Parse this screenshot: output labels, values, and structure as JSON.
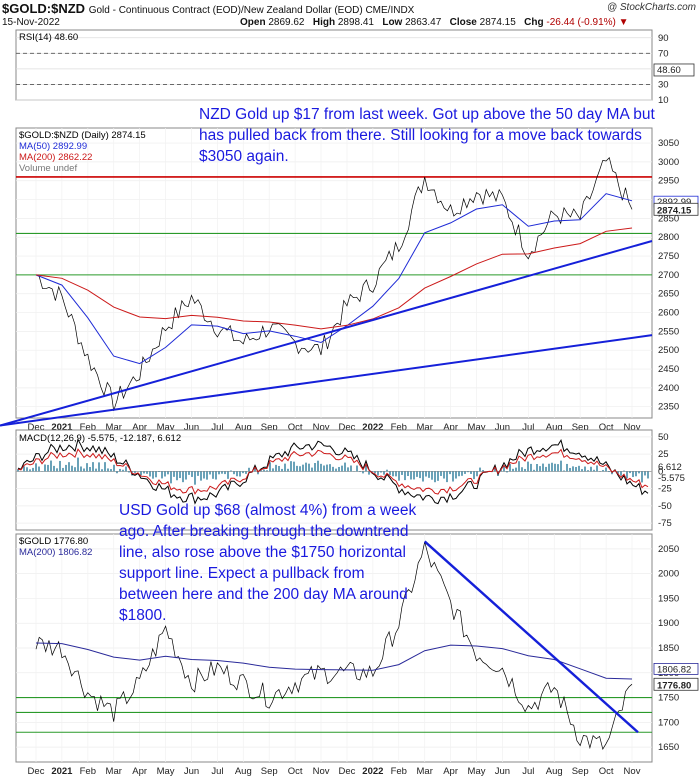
{
  "header": {
    "symbol": "$GOLD:$NZD",
    "description": "Gold - Continuous Contract (EOD)/New Zealand Dollar (EOD) CME/INDX",
    "date": "15-Nov-2022",
    "open_label": "Open",
    "open": "2869.62",
    "high_label": "High",
    "high": "2898.41",
    "low_label": "Low",
    "low": "2863.47",
    "close_label": "Close",
    "close": "2874.15",
    "chg_label": "Chg",
    "chg": "-26.44 (-0.91%)",
    "brand": "@ StockCharts.com"
  },
  "annotations": {
    "nzd_note": "NZD Gold up $17 from last week. Got up above the 50 day MA but has pulled back from there. Still looking for a move back towards $3050 again.",
    "usd_note": "USD Gold up $68 (almost 4%) from a week ago. After breaking through the downtrend line, also rose above the $1750 horizontal support line. Expect a pullback from between here and the 200 day MA around $1800."
  },
  "colors": {
    "price": "#000000",
    "ma50": "#1f2bd6",
    "ma200": "#cc1a1a",
    "trendline": "#1520d9",
    "resistance": "#cc0000",
    "support": "#2a9a2a",
    "annotation": "#1a1adf",
    "macd_hist": "#2a7a9a"
  },
  "chart_data": [
    {
      "type": "line",
      "panel": "RSI",
      "label": "RSI(14) 48.60",
      "value": 48.6,
      "y_ticks": [
        10,
        30,
        50,
        70,
        90
      ],
      "ylim": [
        10,
        100
      ],
      "reference_lines": [
        30,
        70
      ]
    },
    {
      "type": "line",
      "panel": "price",
      "title": "$GOLD:$NZD (Daily) 2874.15",
      "legend": [
        "MA(50) 2892.99",
        "MA(200) 2862.22",
        "Volume undef"
      ],
      "x_ticks": [
        "Dec",
        "2021",
        "Feb",
        "Mar",
        "Apr",
        "May",
        "Jun",
        "Jul",
        "Aug",
        "Sep",
        "Oct",
        "Nov",
        "Dec",
        "2022",
        "Feb",
        "Mar",
        "Apr",
        "May",
        "Jun",
        "Jul",
        "Aug",
        "Sep",
        "Oct",
        "Nov"
      ],
      "y_ticks": [
        2350,
        2400,
        2450,
        2500,
        2550,
        2600,
        2650,
        2700,
        2750,
        2800,
        2850,
        2900,
        2950,
        3000,
        3050
      ],
      "ylim": [
        2320,
        3090
      ],
      "price_label": "2874.15",
      "ma50_label": "2892.99",
      "ma200_label": "2862.22",
      "horizontal_lines": [
        {
          "value": 2960,
          "color": "red"
        },
        {
          "value": 2810,
          "color": "green"
        },
        {
          "value": 2700,
          "color": "green"
        }
      ],
      "close_approx": [
        {
          "x": "Dec 2020",
          "y": 2700
        },
        {
          "x": "Jan 2021",
          "y": 2640
        },
        {
          "x": "Feb 2021",
          "y": 2480
        },
        {
          "x": "Mar 2021",
          "y": 2360
        },
        {
          "x": "Apr 2021",
          "y": 2440
        },
        {
          "x": "May 2021",
          "y": 2560
        },
        {
          "x": "Jun 2021",
          "y": 2640
        },
        {
          "x": "Jul 2021",
          "y": 2560
        },
        {
          "x": "Aug 2021",
          "y": 2520
        },
        {
          "x": "Sep 2021",
          "y": 2560
        },
        {
          "x": "Oct 2021",
          "y": 2520
        },
        {
          "x": "Nov 2021",
          "y": 2500
        },
        {
          "x": "Dec 2021",
          "y": 2620
        },
        {
          "x": "Jan 2022",
          "y": 2680
        },
        {
          "x": "Feb 2022",
          "y": 2780
        },
        {
          "x": "Mar 2022",
          "y": 2960
        },
        {
          "x": "Apr 2022",
          "y": 2870
        },
        {
          "x": "May 2022",
          "y": 2920
        },
        {
          "x": "Jun 2022",
          "y": 2900
        },
        {
          "x": "Jul 2022",
          "y": 2760
        },
        {
          "x": "Aug 2022",
          "y": 2860
        },
        {
          "x": "Sep 2022",
          "y": 2850
        },
        {
          "x": "Oct 2022",
          "y": 3000
        },
        {
          "x": "Nov 2022",
          "y": 2874
        }
      ]
    },
    {
      "type": "line",
      "panel": "MACD",
      "label": "MACD(12,26,9) -5.575, -12.187, 6.612",
      "values": [
        -5.575,
        -12.187,
        6.612
      ],
      "y_ticks": [
        -75,
        -50,
        -25,
        0,
        25,
        50
      ],
      "ylim": [
        -85,
        60
      ]
    },
    {
      "type": "line",
      "panel": "usd_gold",
      "title": "$GOLD 1776.80",
      "legend": [
        "MA(200) 1806.82"
      ],
      "x_ticks": [
        "Dec",
        "2021",
        "Feb",
        "Mar",
        "Apr",
        "May",
        "Jun",
        "Jul",
        "Aug",
        "Sep",
        "Oct",
        "Nov",
        "Dec",
        "2022",
        "Feb",
        "Mar",
        "Apr",
        "May",
        "Jun",
        "Jul",
        "Aug",
        "Sep",
        "Oct",
        "Nov"
      ],
      "y_ticks": [
        1650,
        1700,
        1750,
        1800,
        1850,
        1900,
        1950,
        2000,
        2050
      ],
      "ylim": [
        1620,
        2080
      ],
      "price_label": "1776.80",
      "ma200_label": "1806.82",
      "horizontal_lines": [
        {
          "value": 1750,
          "color": "green"
        },
        {
          "value": 1720,
          "color": "green"
        },
        {
          "value": 1680,
          "color": "green"
        }
      ],
      "close_approx": [
        {
          "x": "Dec 2020",
          "y": 1860
        },
        {
          "x": "Jan 2021",
          "y": 1850
        },
        {
          "x": "Feb 2021",
          "y": 1760
        },
        {
          "x": "Mar 2021",
          "y": 1720
        },
        {
          "x": "Apr 2021",
          "y": 1780
        },
        {
          "x": "May 2021",
          "y": 1890
        },
        {
          "x": "Jun 2021",
          "y": 1780
        },
        {
          "x": "Jul 2021",
          "y": 1810
        },
        {
          "x": "Aug 2021",
          "y": 1780
        },
        {
          "x": "Sep 2021",
          "y": 1750
        },
        {
          "x": "Oct 2021",
          "y": 1780
        },
        {
          "x": "Nov 2021",
          "y": 1800
        },
        {
          "x": "Dec 2021",
          "y": 1800
        },
        {
          "x": "Jan 2022",
          "y": 1800
        },
        {
          "x": "Feb 2022",
          "y": 1900
        },
        {
          "x": "Mar 2022",
          "y": 2050
        },
        {
          "x": "Apr 2022",
          "y": 1940
        },
        {
          "x": "May 2022",
          "y": 1840
        },
        {
          "x": "Jun 2022",
          "y": 1810
        },
        {
          "x": "Jul 2022",
          "y": 1730
        },
        {
          "x": "Aug 2022",
          "y": 1770
        },
        {
          "x": "Sep 2022",
          "y": 1670
        },
        {
          "x": "Oct 2022",
          "y": 1650
        },
        {
          "x": "Nov 2022",
          "y": 1777
        }
      ]
    }
  ]
}
